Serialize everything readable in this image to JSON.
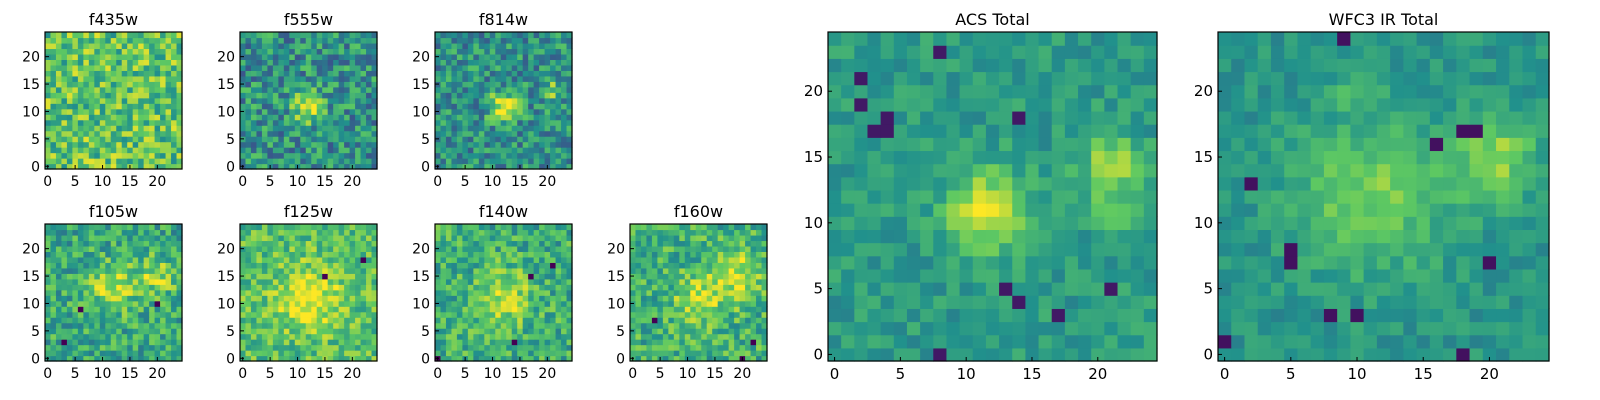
{
  "figure": {
    "colormap": [
      "#440154",
      "#3b528b",
      "#21918c",
      "#5ec962",
      "#fde725"
    ],
    "palette": {
      "background": "#ffffff",
      "frame": "#000000"
    }
  },
  "chart_data": [
    {
      "type": "heatmap",
      "title": "f435w",
      "grid": [
        25,
        25
      ],
      "xlim": [
        0,
        24
      ],
      "ylim": [
        0,
        24
      ],
      "xticks": [
        0,
        5,
        10,
        15,
        20
      ],
      "yticks": [
        0,
        5,
        10,
        15,
        20
      ],
      "seed": 11,
      "bias": 0.72,
      "spread": 0.24,
      "contrast": 1.0,
      "hotspots": [],
      "dark_spots": []
    },
    {
      "type": "heatmap",
      "title": "f555w",
      "grid": [
        25,
        25
      ],
      "xlim": [
        0,
        24
      ],
      "ylim": [
        0,
        24
      ],
      "xticks": [
        0,
        5,
        10,
        15,
        20
      ],
      "yticks": [
        0,
        5,
        10,
        15,
        20
      ],
      "seed": 23,
      "bias": 0.5,
      "spread": 0.24,
      "contrast": 1.0,
      "hotspots": [
        [
          12,
          11,
          0.45,
          2.0
        ]
      ],
      "dark_spots": []
    },
    {
      "type": "heatmap",
      "title": "f814w",
      "grid": [
        25,
        25
      ],
      "xlim": [
        0,
        24
      ],
      "ylim": [
        0,
        24
      ],
      "xticks": [
        0,
        5,
        10,
        15,
        20
      ],
      "yticks": [
        0,
        5,
        10,
        15,
        20
      ],
      "seed": 37,
      "bias": 0.5,
      "spread": 0.22,
      "contrast": 1.0,
      "hotspots": [
        [
          12,
          11,
          0.5,
          1.8
        ],
        [
          21,
          14,
          0.25,
          1.5
        ]
      ],
      "dark_spots": []
    },
    {
      "type": "heatmap",
      "title": "f105w",
      "grid": [
        25,
        25
      ],
      "xlim": [
        0,
        24
      ],
      "ylim": [
        0,
        24
      ],
      "xticks": [
        0,
        5,
        10,
        15,
        20
      ],
      "yticks": [
        0,
        5,
        10,
        15,
        20
      ],
      "seed": 41,
      "bias": 0.6,
      "spread": 0.2,
      "contrast": 1.0,
      "hotspots": [
        [
          12,
          13,
          0.3,
          3.0
        ],
        [
          20,
          15,
          0.25,
          2.5
        ]
      ],
      "dark_spots": [
        [
          20,
          10
        ],
        [
          6,
          9
        ],
        [
          3,
          3
        ]
      ]
    },
    {
      "type": "heatmap",
      "title": "f125w",
      "grid": [
        25,
        25
      ],
      "xlim": [
        0,
        24
      ],
      "ylim": [
        0,
        24
      ],
      "xticks": [
        0,
        5,
        10,
        15,
        20
      ],
      "yticks": [
        0,
        5,
        10,
        15,
        20
      ],
      "seed": 53,
      "bias": 0.7,
      "spread": 0.18,
      "contrast": 1.0,
      "hotspots": [
        [
          12,
          11,
          0.3,
          4.0
        ]
      ],
      "dark_spots": [
        [
          15,
          15
        ],
        [
          22,
          18
        ]
      ]
    },
    {
      "type": "heatmap",
      "title": "f140w",
      "grid": [
        25,
        25
      ],
      "xlim": [
        0,
        24
      ],
      "ylim": [
        0,
        24
      ],
      "xticks": [
        0,
        5,
        10,
        15,
        20
      ],
      "yticks": [
        0,
        5,
        10,
        15,
        20
      ],
      "seed": 67,
      "bias": 0.62,
      "spread": 0.2,
      "contrast": 1.0,
      "hotspots": [
        [
          12,
          11,
          0.3,
          3.5
        ]
      ],
      "dark_spots": [
        [
          17,
          15
        ],
        [
          21,
          17
        ],
        [
          0,
          0
        ],
        [
          14,
          3
        ]
      ]
    },
    {
      "type": "heatmap",
      "title": "f160w",
      "grid": [
        25,
        25
      ],
      "xlim": [
        0,
        24
      ],
      "ylim": [
        0,
        24
      ],
      "xticks": [
        0,
        5,
        10,
        15,
        20
      ],
      "yticks": [
        0,
        5,
        10,
        15,
        20
      ],
      "seed": 71,
      "bias": 0.64,
      "spread": 0.2,
      "contrast": 1.0,
      "hotspots": [
        [
          19,
          15,
          0.3,
          3.0
        ],
        [
          12,
          11,
          0.25,
          3.0
        ]
      ],
      "dark_spots": [
        [
          4,
          7
        ],
        [
          22,
          3
        ],
        [
          20,
          0
        ]
      ]
    },
    {
      "type": "heatmap",
      "title": "ACS Total",
      "grid": [
        25,
        25
      ],
      "xlim": [
        0,
        24
      ],
      "ylim": [
        0,
        24
      ],
      "xticks": [
        0,
        5,
        10,
        15,
        20
      ],
      "yticks": [
        0,
        5,
        10,
        15,
        20
      ],
      "seed": 83,
      "bias": 0.55,
      "spread": 0.12,
      "contrast": 0.85,
      "hotspots": [
        [
          11.5,
          11,
          0.55,
          2.0
        ],
        [
          21,
          14.5,
          0.35,
          1.6
        ],
        [
          21,
          11,
          0.2,
          1.3
        ]
      ],
      "dark_spots": [
        [
          2,
          21
        ],
        [
          8,
          23
        ],
        [
          4,
          18
        ],
        [
          2,
          19
        ],
        [
          4,
          17
        ],
        [
          3,
          17
        ],
        [
          17,
          3
        ],
        [
          21,
          5
        ],
        [
          14,
          4
        ],
        [
          13,
          5
        ],
        [
          8,
          0
        ],
        [
          14,
          18
        ]
      ]
    },
    {
      "type": "heatmap",
      "title": "WFC3 IR Total",
      "grid": [
        25,
        25
      ],
      "xlim": [
        0,
        24
      ],
      "ylim": [
        0,
        24
      ],
      "xticks": [
        0,
        5,
        10,
        15,
        20
      ],
      "yticks": [
        0,
        5,
        10,
        15,
        20
      ],
      "seed": 97,
      "bias": 0.52,
      "spread": 0.1,
      "contrast": 0.9,
      "hotspots": [
        [
          11,
          12,
          0.3,
          4.0
        ],
        [
          20.5,
          15,
          0.35,
          2.2
        ],
        [
          10,
          20,
          0.15,
          1.3
        ]
      ],
      "dark_spots": [
        [
          9,
          24
        ],
        [
          18,
          17
        ],
        [
          19,
          17
        ],
        [
          16,
          16
        ],
        [
          5,
          8
        ],
        [
          5,
          7
        ],
        [
          20,
          7
        ],
        [
          18,
          0
        ],
        [
          8,
          3
        ],
        [
          10,
          3
        ],
        [
          0,
          1
        ],
        [
          2,
          13
        ]
      ]
    }
  ]
}
